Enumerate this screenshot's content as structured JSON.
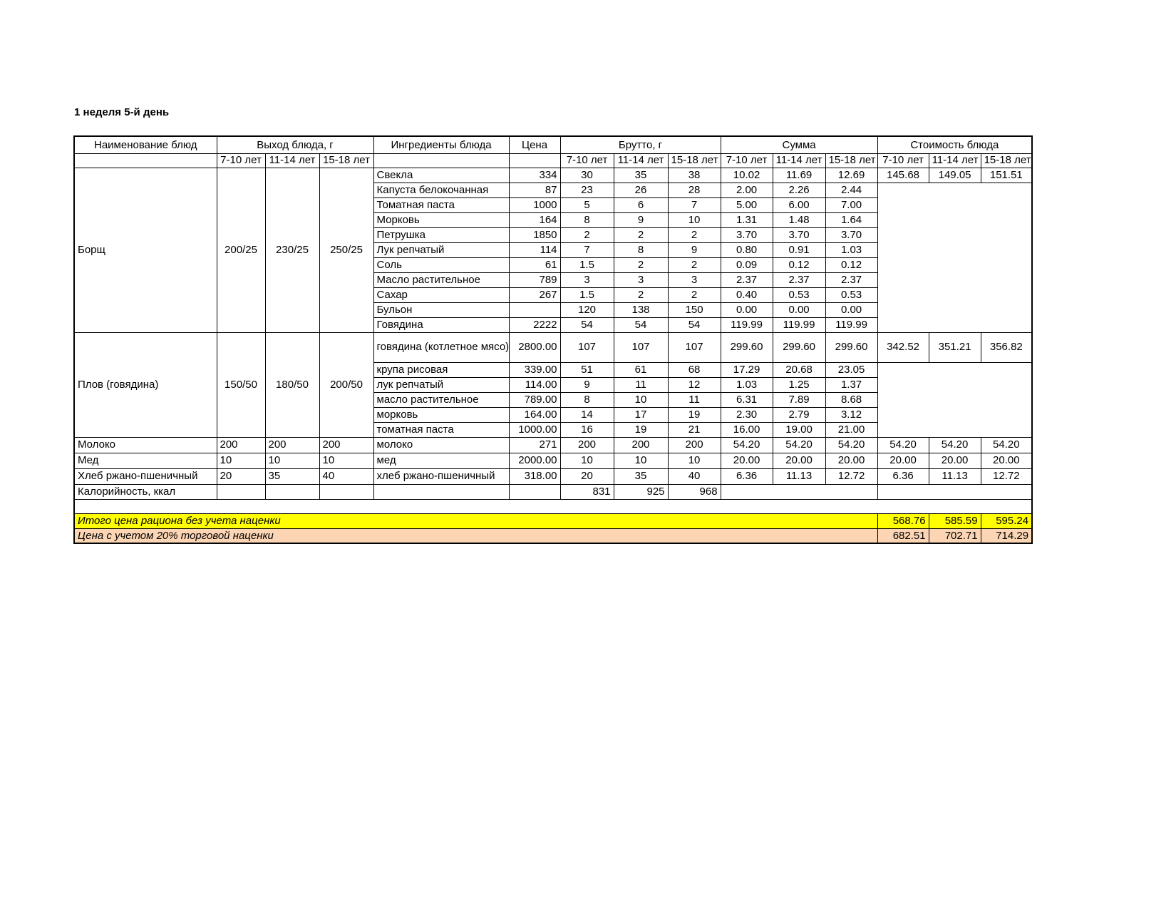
{
  "title": "1 неделя 5-й день",
  "table": {
    "header": {
      "col_dish": "Наименование блюд",
      "col_output": "Выход блюда, г",
      "col_ingredients": "Ингредиенты блюда",
      "col_price": "Цена",
      "col_gross": "Брутто, г",
      "col_sum": "Сумма",
      "col_cost": "Стоимость блюда",
      "age_groups": [
        "7-10 лет",
        "11-14 лет",
        "15-18 лет"
      ]
    },
    "sections": [
      {
        "dish": "Борщ",
        "output": [
          "200/25",
          "230/25",
          "250/25"
        ],
        "cost": [
          "145.68",
          "149.05",
          "151.51"
        ],
        "rows": [
          {
            "ingredient": "Свекла",
            "price": "334",
            "gross": [
              "30",
              "35",
              "38"
            ],
            "sum": [
              "10.02",
              "11.69",
              "12.69"
            ]
          },
          {
            "ingredient": "Капуста белокочанная",
            "price": "87",
            "gross": [
              "23",
              "26",
              "28"
            ],
            "sum": [
              "2.00",
              "2.26",
              "2.44"
            ]
          },
          {
            "ingredient": "Томатная паста",
            "price": "1000",
            "gross": [
              "5",
              "6",
              "7"
            ],
            "sum": [
              "5.00",
              "6.00",
              "7.00"
            ]
          },
          {
            "ingredient": "Морковь",
            "price": "164",
            "gross": [
              "8",
              "9",
              "10"
            ],
            "sum": [
              "1.31",
              "1.48",
              "1.64"
            ]
          },
          {
            "ingredient": "Петрушка",
            "price": "1850",
            "gross": [
              "2",
              "2",
              "2"
            ],
            "sum": [
              "3.70",
              "3.70",
              "3.70"
            ]
          },
          {
            "ingredient": "Лук репчатый",
            "price": "114",
            "gross": [
              "7",
              "8",
              "9"
            ],
            "sum": [
              "0.80",
              "0.91",
              "1.03"
            ]
          },
          {
            "ingredient": "Соль",
            "price": "61",
            "gross": [
              "1.5",
              "2",
              "2"
            ],
            "sum": [
              "0.09",
              "0.12",
              "0.12"
            ]
          },
          {
            "ingredient": "Масло растительное",
            "price": "789",
            "gross": [
              "3",
              "3",
              "3"
            ],
            "sum": [
              "2.37",
              "2.37",
              "2.37"
            ]
          },
          {
            "ingredient": "Сахар",
            "price": "267",
            "gross": [
              "1.5",
              "2",
              "2"
            ],
            "sum": [
              "0.40",
              "0.53",
              "0.53"
            ]
          },
          {
            "ingredient": "Бульон",
            "price": "",
            "gross": [
              "120",
              "138",
              "150"
            ],
            "sum": [
              "0.00",
              "0.00",
              "0.00"
            ]
          },
          {
            "ingredient": "Говядина",
            "price": "2222",
            "gross": [
              "54",
              "54",
              "54"
            ],
            "sum": [
              "119.99",
              "119.99",
              "119.99"
            ]
          }
        ]
      },
      {
        "dish": "Плов (говядина)",
        "output": [
          "150/50",
          "180/50",
          "200/50"
        ],
        "cost": [
          "342.52",
          "351.21",
          "356.82"
        ],
        "rows": [
          {
            "ingredient": "говядина (котлетное мясо)",
            "price": "2800.00",
            "gross": [
              "107",
              "107",
              "107"
            ],
            "sum": [
              "299.60",
              "299.60",
              "299.60"
            ],
            "tall": true
          },
          {
            "ingredient": "крупа рисовая",
            "price": "339.00",
            "gross": [
              "51",
              "61",
              "68"
            ],
            "sum": [
              "17.29",
              "20.68",
              "23.05"
            ]
          },
          {
            "ingredient": "лук репчатый",
            "price": "114.00",
            "gross": [
              "9",
              "11",
              "12"
            ],
            "sum": [
              "1.03",
              "1.25",
              "1.37"
            ]
          },
          {
            "ingredient": "масло растительное",
            "price": "789.00",
            "gross": [
              "8",
              "10",
              "11"
            ],
            "sum": [
              "6.31",
              "7.89",
              "8.68"
            ]
          },
          {
            "ingredient": "морковь",
            "price": "164.00",
            "gross": [
              "14",
              "17",
              "19"
            ],
            "sum": [
              "2.30",
              "2.79",
              "3.12"
            ]
          },
          {
            "ingredient": "томатная паста",
            "price": "1000.00",
            "gross": [
              "16",
              "19",
              "21"
            ],
            "sum": [
              "16.00",
              "19.00",
              "21.00"
            ]
          }
        ]
      },
      {
        "dish": "Молоко",
        "output": [
          "200",
          "200",
          "200"
        ],
        "output_align": "left",
        "cost": [
          "54.20",
          "54.20",
          "54.20"
        ],
        "rows": [
          {
            "ingredient": "молоко",
            "price": "271",
            "gross": [
              "200",
              "200",
              "200"
            ],
            "sum": [
              "54.20",
              "54.20",
              "54.20"
            ]
          }
        ]
      },
      {
        "dish": "Мед",
        "output": [
          "10",
          "10",
          "10"
        ],
        "output_align": "left",
        "cost": [
          "20.00",
          "20.00",
          "20.00"
        ],
        "rows": [
          {
            "ingredient": "мед",
            "price": "2000.00",
            "gross": [
              "10",
              "10",
              "10"
            ],
            "sum": [
              "20.00",
              "20.00",
              "20.00"
            ]
          }
        ]
      },
      {
        "dish": "Хлеб ржано-пшеничный",
        "output": [
          "20",
          "35",
          "40"
        ],
        "output_align": "left",
        "cost": [
          "6.36",
          "11.13",
          "12.72"
        ],
        "rows": [
          {
            "ingredient": "хлеб ржано-пшеничный",
            "price": "318.00",
            "gross": [
              "20",
              "35",
              "40"
            ],
            "sum": [
              "6.36",
              "11.13",
              "12.72"
            ]
          }
        ]
      }
    ],
    "calories_row": {
      "label": "Калорийность, ккал",
      "values": [
        "831",
        "925",
        "968"
      ]
    },
    "totals": [
      {
        "label": "Итого цена рациона без учета наценки",
        "values": [
          "568.76",
          "585.59",
          "595.24"
        ],
        "bg": "#ffff00"
      },
      {
        "label": "Цена с учетом 20% торговой наценки",
        "values": [
          "682.51",
          "702.71",
          "714.29"
        ],
        "bg": "#fbd5b4"
      }
    ]
  }
}
